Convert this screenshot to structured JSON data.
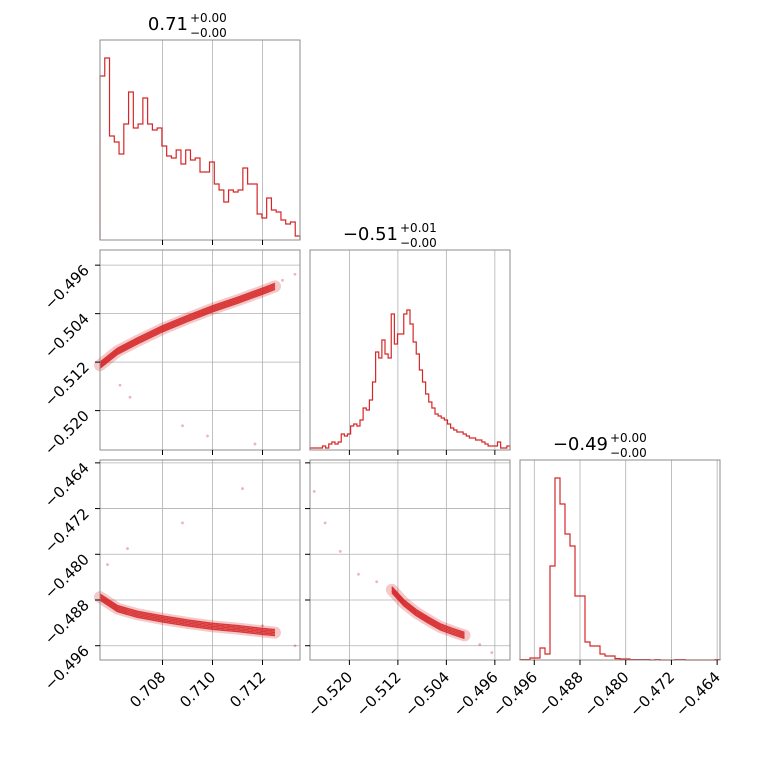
{
  "chart_data": {
    "type": "corner",
    "color": "#d62728",
    "grid": true,
    "panels": [
      {
        "id": "hist-p1",
        "type": "histogram",
        "title": {
          "value": "0.71",
          "upper": "+0.00",
          "lower": "−0.00"
        },
        "xlim": [
          0.7055,
          0.7135
        ],
        "x_ticks": [
          0.708,
          0.71,
          0.712
        ],
        "counts": [
          0.82,
          0.91,
          0.52,
          0.49,
          0.43,
          0.58,
          0.74,
          0.56,
          0.58,
          0.71,
          0.58,
          0.55,
          0.56,
          0.47,
          0.42,
          0.41,
          0.45,
          0.38,
          0.45,
          0.4,
          0.41,
          0.34,
          0.34,
          0.39,
          0.28,
          0.25,
          0.19,
          0.25,
          0.24,
          0.25,
          0.36,
          0.28,
          0.28,
          0.13,
          0.11,
          0.21,
          0.15,
          0.14,
          0.1,
          0.08,
          0.09,
          0.02
        ]
      },
      {
        "id": "hist-p2",
        "type": "histogram",
        "title": {
          "value": "−0.51",
          "upper": "+0.01",
          "lower": "−0.00"
        },
        "xlim": [
          -0.5265,
          -0.4935
        ],
        "x_ticks": [
          -0.52,
          -0.512,
          -0.504,
          -0.496
        ],
        "x_tick_labels": [
          "−0.520",
          "−0.512",
          "−0.504",
          "−0.496"
        ],
        "counts": [
          0.01,
          0.01,
          0.01,
          0.01,
          0.02,
          0.01,
          0.03,
          0.04,
          0.03,
          0.04,
          0.08,
          0.07,
          0.08,
          0.12,
          0.13,
          0.12,
          0.15,
          0.21,
          0.2,
          0.25,
          0.34,
          0.49,
          0.46,
          0.55,
          0.48,
          0.46,
          0.68,
          0.53,
          0.58,
          0.58,
          0.68,
          0.7,
          0.63,
          0.54,
          0.48,
          0.4,
          0.34,
          0.28,
          0.24,
          0.21,
          0.18,
          0.17,
          0.16,
          0.15,
          0.13,
          0.11,
          0.1,
          0.09,
          0.09,
          0.08,
          0.07,
          0.06,
          0.06,
          0.05,
          0.05,
          0.04,
          0.03,
          0.02,
          0.02,
          0.02,
          0.04,
          0.01,
          0.01,
          0.02
        ],
        "counts_note": ""
      },
      {
        "id": "hist-p3",
        "type": "histogram",
        "title": {
          "value": "−0.49",
          "upper": "+0.00",
          "lower": "−0.00"
        },
        "xlim": [
          -0.4985,
          -0.4635
        ],
        "x_ticks": [
          -0.496,
          -0.488,
          -0.48,
          -0.472,
          -0.464
        ],
        "x_tick_labels": [
          "−0.496",
          "−0.488",
          "−0.480",
          "−0.472",
          "−0.464"
        ],
        "counts": [
          0.002,
          0.002,
          0.01,
          0.01,
          0.06,
          0.03,
          0.47,
          0.91,
          0.78,
          0.63,
          0.57,
          0.32,
          0.32,
          0.09,
          0.07,
          0.07,
          0.03,
          0.02,
          0.02,
          0.007,
          0.005,
          0.005,
          0.002,
          0.002,
          0.002,
          0.002,
          0.0,
          0.002,
          0.0,
          0.0,
          0.0,
          0.002,
          0.002,
          0.0,
          0.0,
          0.0,
          0.0,
          0.0,
          0.0,
          0.002
        ]
      },
      {
        "id": "scatter-p1-p2",
        "type": "contour",
        "xlim": [
          0.7055,
          0.7135
        ],
        "ylim": [
          -0.5265,
          -0.4935
        ],
        "y_ticks": [
          -0.52,
          -0.512,
          -0.504,
          -0.496
        ],
        "y_tick_labels": [
          "−0.520",
          "−0.512",
          "−0.504",
          "−0.496"
        ],
        "ridge": [
          [
            0.7055,
            -0.5125
          ],
          [
            0.7062,
            -0.5102
          ],
          [
            0.707,
            -0.5085
          ],
          [
            0.708,
            -0.5065
          ],
          [
            0.709,
            -0.5048
          ],
          [
            0.71,
            -0.5032
          ],
          [
            0.711,
            -0.5018
          ],
          [
            0.712,
            -0.5003
          ],
          [
            0.7125,
            -0.4995
          ]
        ],
        "outliers": [
          [
            0.7063,
            -0.5158
          ],
          [
            0.7067,
            -0.5178
          ],
          [
            0.7088,
            -0.5225
          ],
          [
            0.7098,
            -0.5242
          ],
          [
            0.7117,
            -0.5255
          ],
          [
            0.7128,
            -0.4985
          ],
          [
            0.7133,
            -0.4975
          ]
        ]
      },
      {
        "id": "scatter-p1-p3",
        "type": "contour",
        "xlim": [
          0.7055,
          0.7135
        ],
        "ylim": [
          -0.4985,
          -0.4635
        ],
        "y_ticks": [
          -0.496,
          -0.488,
          -0.48,
          -0.472,
          -0.464
        ],
        "y_tick_labels": [
          "−0.496",
          "−0.488",
          "−0.480",
          "−0.472",
          "−0.464"
        ],
        "ridge": [
          [
            0.7055,
            -0.4875
          ],
          [
            0.7062,
            -0.4895
          ],
          [
            0.707,
            -0.4905
          ],
          [
            0.708,
            -0.4913
          ],
          [
            0.709,
            -0.492
          ],
          [
            0.71,
            -0.4926
          ],
          [
            0.711,
            -0.493
          ],
          [
            0.712,
            -0.4935
          ],
          [
            0.7125,
            -0.4937
          ]
        ],
        "outliers": [
          [
            0.7058,
            -0.4818
          ],
          [
            0.7066,
            -0.479
          ],
          [
            0.7088,
            -0.4745
          ],
          [
            0.7112,
            -0.4685
          ],
          [
            0.712,
            -0.4925
          ],
          [
            0.7133,
            -0.496
          ]
        ]
      },
      {
        "id": "scatter-p2-p3",
        "type": "contour",
        "xlim": [
          -0.5265,
          -0.4935
        ],
        "ylim": [
          -0.4985,
          -0.4635
        ],
        "x_ticks": [
          -0.52,
          -0.512,
          -0.504,
          -0.496
        ],
        "x_tick_labels": [
          "−0.520",
          "−0.512",
          "−0.504",
          "−0.496"
        ],
        "ridge": [
          [
            -0.513,
            -0.4862
          ],
          [
            -0.511,
            -0.4885
          ],
          [
            -0.509,
            -0.4902
          ],
          [
            -0.507,
            -0.4915
          ],
          [
            -0.505,
            -0.4927
          ],
          [
            -0.503,
            -0.4935
          ],
          [
            -0.501,
            -0.4942
          ]
        ],
        "outliers": [
          [
            -0.5258,
            -0.469
          ],
          [
            -0.524,
            -0.4745
          ],
          [
            -0.5215,
            -0.4795
          ],
          [
            -0.5185,
            -0.4835
          ],
          [
            -0.5155,
            -0.4848
          ],
          [
            -0.4985,
            -0.4958
          ],
          [
            -0.4965,
            -0.4972
          ]
        ]
      }
    ]
  }
}
